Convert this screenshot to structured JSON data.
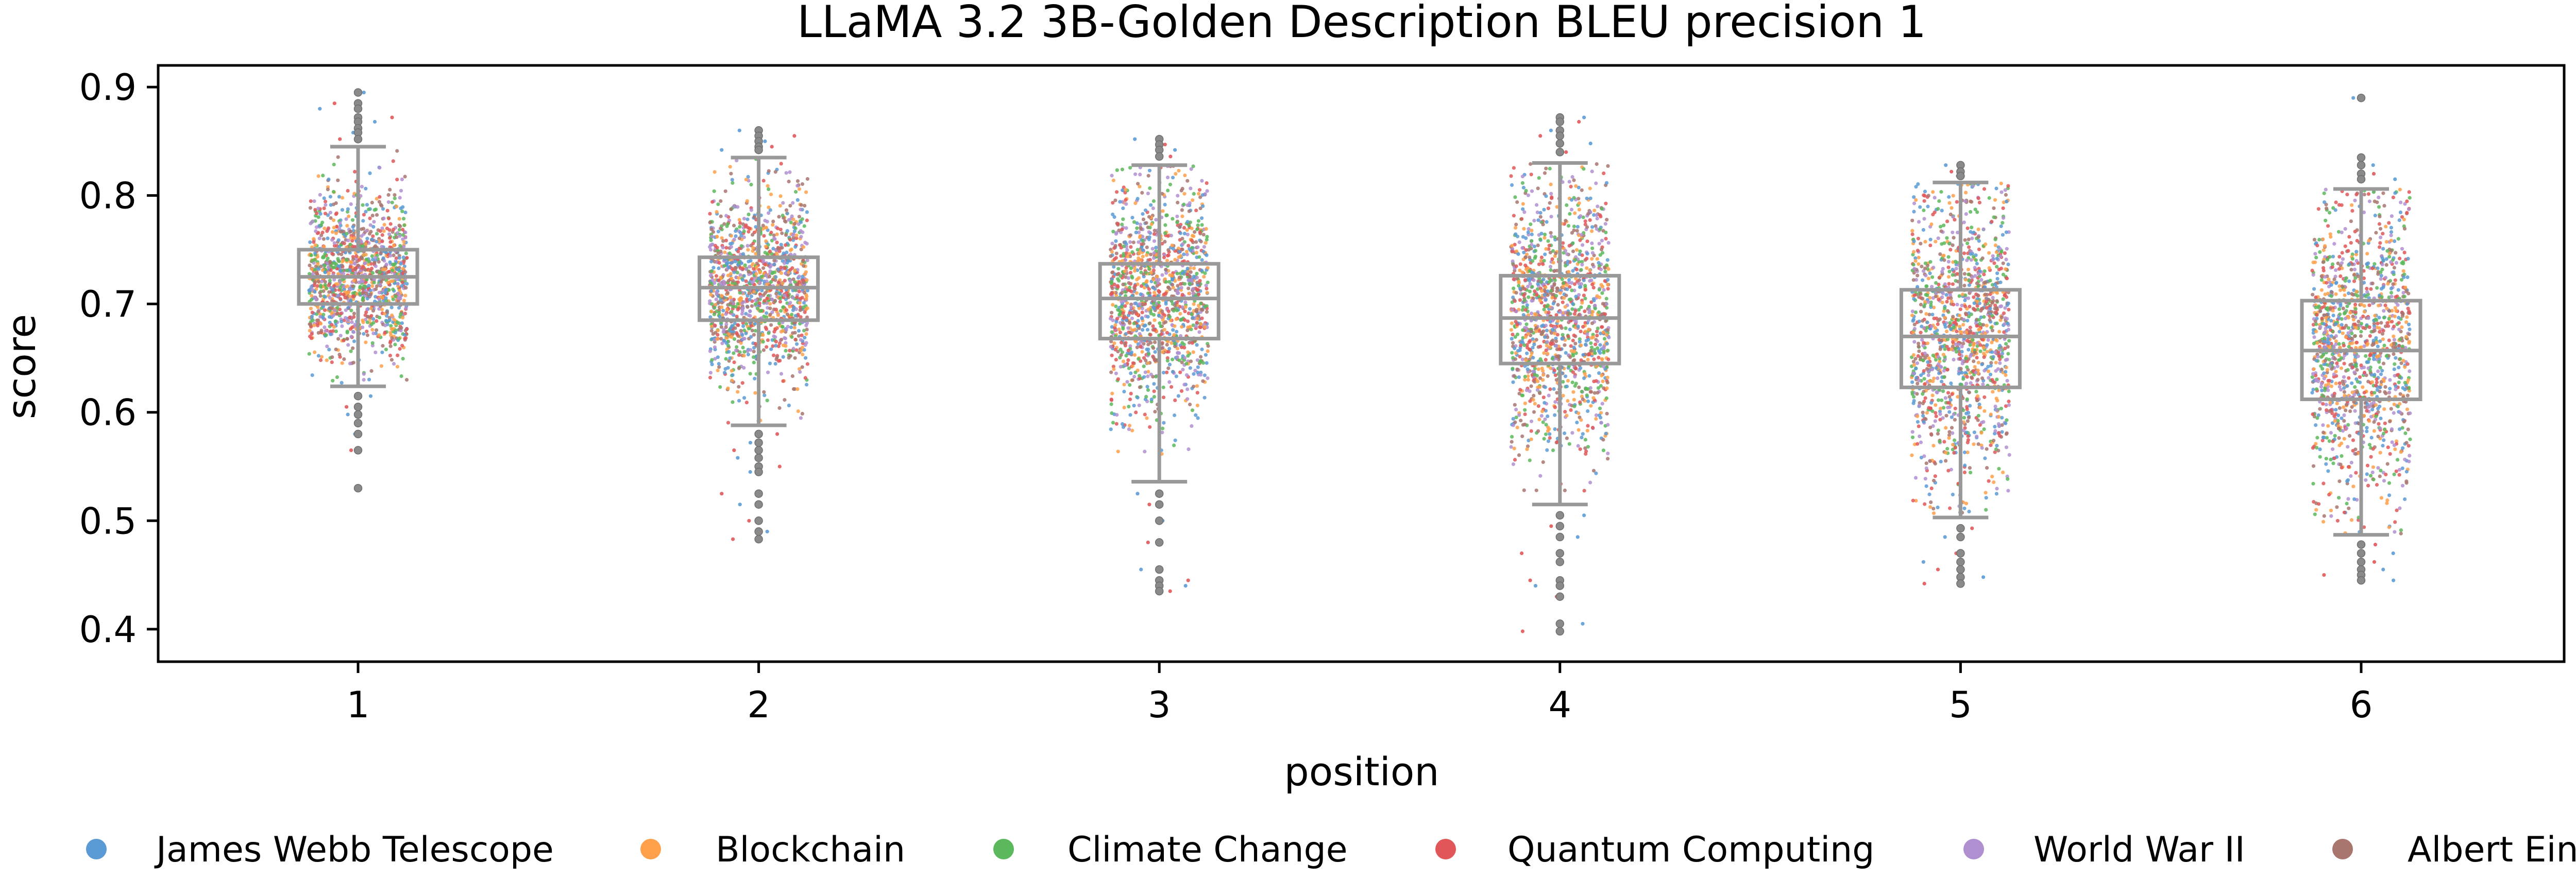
{
  "chart_data": {
    "type": "box+strip",
    "title": "LLaMA 3.2 3B-Golden Description BLEU precision 1",
    "xlabel": "position",
    "ylabel": "score",
    "categories": [
      "1",
      "2",
      "3",
      "4",
      "5",
      "6"
    ],
    "ylim": [
      0.37,
      0.92
    ],
    "yticks": [
      0.4,
      0.5,
      0.6,
      0.7,
      0.8,
      0.9
    ],
    "ytick_labels": [
      "0.4",
      "0.5",
      "0.6",
      "0.7",
      "0.8",
      "0.9"
    ],
    "grid": false,
    "legend_position": "bottom",
    "box_color": "#999999",
    "boxes": [
      {
        "category": "1",
        "whisker_low": 0.624,
        "q1": 0.7,
        "median": 0.725,
        "q3": 0.75,
        "whisker_high": 0.845,
        "outliers": [
          0.895,
          0.885,
          0.88,
          0.872,
          0.868,
          0.862,
          0.858,
          0.852,
          0.615,
          0.605,
          0.598,
          0.59,
          0.58,
          0.565,
          0.53
        ]
      },
      {
        "category": "2",
        "whisker_low": 0.588,
        "q1": 0.685,
        "median": 0.715,
        "q3": 0.743,
        "whisker_high": 0.835,
        "outliers": [
          0.86,
          0.855,
          0.85,
          0.845,
          0.842,
          0.58,
          0.572,
          0.565,
          0.558,
          0.55,
          0.545,
          0.525,
          0.515,
          0.5,
          0.49,
          0.483
        ]
      },
      {
        "category": "3",
        "whisker_low": 0.536,
        "q1": 0.668,
        "median": 0.705,
        "q3": 0.737,
        "whisker_high": 0.828,
        "outliers": [
          0.852,
          0.847,
          0.842,
          0.836,
          0.525,
          0.515,
          0.5,
          0.48,
          0.455,
          0.445,
          0.44,
          0.435
        ]
      },
      {
        "category": "4",
        "whisker_low": 0.515,
        "q1": 0.645,
        "median": 0.687,
        "q3": 0.726,
        "whisker_high": 0.83,
        "outliers": [
          0.872,
          0.868,
          0.86,
          0.855,
          0.848,
          0.84,
          0.505,
          0.495,
          0.485,
          0.47,
          0.462,
          0.445,
          0.44,
          0.43,
          0.405,
          0.398
        ]
      },
      {
        "category": "5",
        "whisker_low": 0.503,
        "q1": 0.623,
        "median": 0.67,
        "q3": 0.713,
        "whisker_high": 0.812,
        "outliers": [
          0.828,
          0.822,
          0.818,
          0.493,
          0.485,
          0.47,
          0.462,
          0.455,
          0.448,
          0.442
        ]
      },
      {
        "category": "6",
        "whisker_low": 0.487,
        "q1": 0.612,
        "median": 0.657,
        "q3": 0.703,
        "whisker_high": 0.806,
        "outliers": [
          0.89,
          0.835,
          0.828,
          0.82,
          0.815,
          0.478,
          0.47,
          0.462,
          0.455,
          0.45,
          0.445
        ]
      }
    ],
    "series": [
      {
        "name": "James Webb Telescope",
        "color": "#5b9bd5"
      },
      {
        "name": "Blockchain",
        "color": "#ffa14a"
      },
      {
        "name": "Climate Change",
        "color": "#5cb85c"
      },
      {
        "name": "Quantum Computing",
        "color": "#e15759"
      },
      {
        "name": "World War II",
        "color": "#b08fd0"
      },
      {
        "name": "Albert Einstein",
        "color": "#a9766e"
      }
    ]
  }
}
